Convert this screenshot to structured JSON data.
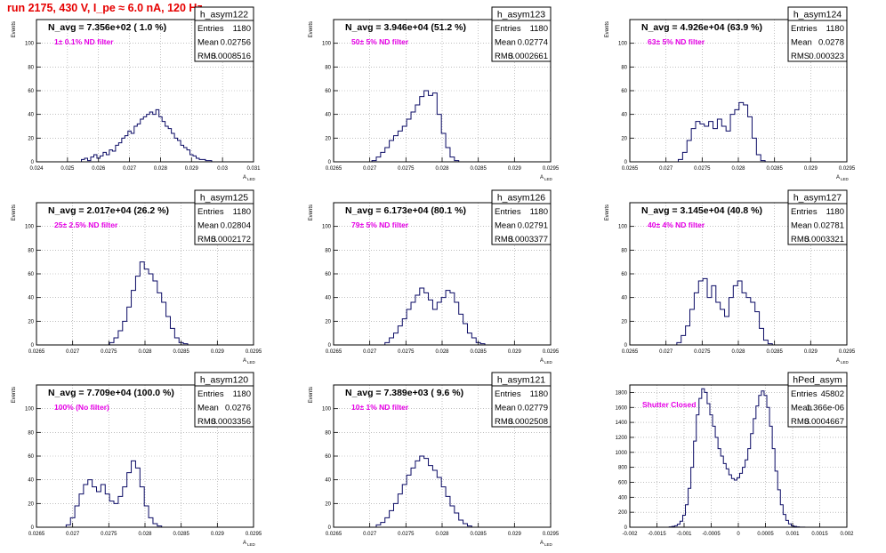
{
  "page": {
    "run_title": "run 2175,    430 V, I_pe ≈ 6.0 nA, 120 Hz"
  },
  "colors": {
    "histogram": "#0a0a64",
    "frame": "#000000",
    "grid": "#999999",
    "annotation": "#e600e6",
    "run_title": "#e60000"
  },
  "chart_data": [
    {
      "type": "histogram",
      "name": "h_asym122",
      "navg": "N_avg = 7.356e+02 ( 1.0 %)",
      "annotation": "1± 0.1% ND filter",
      "stats": {
        "entries": "1180",
        "mean": "0.02756",
        "rms": "0.0008516"
      },
      "xlim": [
        0.024,
        0.031
      ],
      "ylim": [
        0,
        120
      ],
      "xticks": [
        "0.024",
        "0.025",
        "0.026",
        "0.027",
        "0.028",
        "0.029",
        "0.03",
        "0.031"
      ],
      "yticks": [
        "0",
        "20",
        "40",
        "60",
        "80",
        "100"
      ],
      "ylabel": "Events",
      "xlabel": "A_LED",
      "bins_x": [
        0.0255,
        0.0256,
        0.0257,
        0.0258,
        0.0259,
        0.026,
        0.0261,
        0.0262,
        0.0263,
        0.0264,
        0.0265,
        0.0266,
        0.0267,
        0.0268,
        0.0269,
        0.027,
        0.0271,
        0.0272,
        0.0273,
        0.0274,
        0.0275,
        0.0276,
        0.0277,
        0.0278,
        0.0279,
        0.028,
        0.0281,
        0.0282,
        0.0283,
        0.0284,
        0.0285,
        0.0286,
        0.0287,
        0.0288,
        0.0289,
        0.029,
        0.0291,
        0.0292,
        0.0293,
        0.0294,
        0.0295,
        0.0296
      ],
      "values": [
        2,
        3,
        1,
        4,
        6,
        3,
        5,
        8,
        6,
        10,
        9,
        14,
        16,
        20,
        22,
        26,
        24,
        30,
        32,
        36,
        38,
        40,
        42,
        40,
        44,
        38,
        34,
        30,
        28,
        24,
        20,
        18,
        14,
        12,
        10,
        6,
        5,
        3,
        2,
        2,
        1,
        1
      ]
    },
    {
      "type": "histogram",
      "name": "h_asym123",
      "navg": "N_avg = 3.946e+04 (51.2 %)",
      "annotation": "50± 5% ND filter",
      "stats": {
        "entries": "1180",
        "mean": "0.02774",
        "rms": "0.0002661"
      },
      "xlim": [
        0.0265,
        0.0295
      ],
      "ylim": [
        0,
        120
      ],
      "xticks": [
        "0.0265",
        "0.027",
        "0.0275",
        "0.028",
        "0.0285",
        "0.029",
        "0.0295"
      ],
      "yticks": [
        "0",
        "20",
        "40",
        "60",
        "80",
        "100"
      ],
      "ylabel": "Events",
      "xlabel": "A_LED",
      "bins_x": [
        0.02706,
        0.02712,
        0.02718,
        0.02724,
        0.0273,
        0.02736,
        0.02742,
        0.02748,
        0.02754,
        0.0276,
        0.02766,
        0.02772,
        0.02778,
        0.02784,
        0.0279,
        0.02796,
        0.02802,
        0.02808,
        0.02814,
        0.0282
      ],
      "values": [
        1,
        4,
        8,
        12,
        18,
        22,
        26,
        30,
        36,
        42,
        48,
        55,
        60,
        56,
        58,
        40,
        24,
        12,
        4,
        1
      ]
    },
    {
      "type": "histogram",
      "name": "h_asym124",
      "navg": "N_avg = 4.926e+04 (63.9 %)",
      "annotation": "63± 5% ND filter",
      "stats": {
        "entries": "1180",
        "mean": "0.0278",
        "rms": "0.000323"
      },
      "xlim": [
        0.0265,
        0.0295
      ],
      "ylim": [
        0,
        120
      ],
      "xticks": [
        "0.0265",
        "0.027",
        "0.0275",
        "0.028",
        "0.0285",
        "0.029",
        "0.0295"
      ],
      "yticks": [
        "0",
        "20",
        "40",
        "60",
        "80",
        "100"
      ],
      "ylabel": "Events",
      "xlabel": "A_LED",
      "bins_x": [
        0.0272,
        0.02726,
        0.02732,
        0.02738,
        0.02744,
        0.0275,
        0.02756,
        0.02762,
        0.02768,
        0.02774,
        0.0278,
        0.02786,
        0.02792,
        0.02798,
        0.02804,
        0.0281,
        0.02816,
        0.02822,
        0.02828,
        0.02834
      ],
      "values": [
        2,
        8,
        18,
        28,
        34,
        32,
        30,
        34,
        28,
        36,
        30,
        26,
        40,
        44,
        50,
        48,
        38,
        20,
        6,
        1
      ]
    },
    {
      "type": "histogram",
      "name": "h_asym125",
      "navg": "N_avg = 2.017e+04 (26.2 %)",
      "annotation": "25± 2.5% ND filter",
      "stats": {
        "entries": "1180",
        "mean": "0.02804",
        "rms": "0.0002172"
      },
      "xlim": [
        0.0265,
        0.0295
      ],
      "ylim": [
        0,
        120
      ],
      "xticks": [
        "0.0265",
        "0.027",
        "0.0275",
        "0.028",
        "0.0285",
        "0.029",
        "0.0295"
      ],
      "yticks": [
        "0",
        "20",
        "40",
        "60",
        "80",
        "100"
      ],
      "ylabel": "Events",
      "xlabel": "A_LED",
      "bins_x": [
        0.02754,
        0.0276,
        0.02766,
        0.02772,
        0.02778,
        0.02784,
        0.0279,
        0.02796,
        0.02802,
        0.02808,
        0.02814,
        0.0282,
        0.02826,
        0.02832,
        0.02838,
        0.02844,
        0.0285,
        0.02856
      ],
      "values": [
        2,
        6,
        12,
        20,
        32,
        46,
        58,
        70,
        64,
        60,
        54,
        44,
        36,
        24,
        14,
        6,
        2,
        1
      ]
    },
    {
      "type": "histogram",
      "name": "h_asym126",
      "navg": "N_avg = 6.173e+04 (80.1 %)",
      "annotation": "79± 5% ND filter",
      "stats": {
        "entries": "1180",
        "mean": "0.02791",
        "rms": "0.0003377"
      },
      "xlim": [
        0.0265,
        0.0295
      ],
      "ylim": [
        0,
        120
      ],
      "xticks": [
        "0.0265",
        "0.027",
        "0.0275",
        "0.028",
        "0.0285",
        "0.029",
        "0.0295"
      ],
      "yticks": [
        "0",
        "20",
        "40",
        "60",
        "80",
        "100"
      ],
      "ylabel": "Events",
      "xlabel": "A_LED",
      "bins_x": [
        0.02724,
        0.0273,
        0.02736,
        0.02742,
        0.02748,
        0.02754,
        0.0276,
        0.02766,
        0.02772,
        0.02778,
        0.02784,
        0.0279,
        0.02796,
        0.02802,
        0.02808,
        0.02814,
        0.0282,
        0.02826,
        0.02832,
        0.02838,
        0.02844,
        0.0285,
        0.02856
      ],
      "values": [
        2,
        6,
        10,
        16,
        22,
        30,
        36,
        42,
        48,
        44,
        38,
        30,
        36,
        40,
        46,
        44,
        36,
        26,
        18,
        10,
        6,
        2,
        1
      ]
    },
    {
      "type": "histogram",
      "name": "h_asym127",
      "navg": "N_avg = 3.145e+04 (40.8 %)",
      "annotation": "40± 4% ND filter",
      "stats": {
        "entries": "1180",
        "mean": "0.02781",
        "rms": "0.0003321"
      },
      "xlim": [
        0.0265,
        0.0295
      ],
      "ylim": [
        0,
        120
      ],
      "xticks": [
        "0.0265",
        "0.027",
        "0.0275",
        "0.028",
        "0.0285",
        "0.029",
        "0.0295"
      ],
      "yticks": [
        "0",
        "20",
        "40",
        "60",
        "80",
        "100"
      ],
      "ylabel": "Events",
      "xlabel": "A_LED",
      "bins_x": [
        0.02718,
        0.02724,
        0.0273,
        0.02736,
        0.02742,
        0.02748,
        0.02754,
        0.0276,
        0.02766,
        0.02772,
        0.02778,
        0.02784,
        0.0279,
        0.02796,
        0.02802,
        0.02808,
        0.02814,
        0.0282,
        0.02826,
        0.02832,
        0.02838,
        0.02844
      ],
      "values": [
        2,
        8,
        16,
        30,
        44,
        54,
        56,
        40,
        50,
        36,
        30,
        24,
        40,
        50,
        54,
        44,
        40,
        36,
        28,
        14,
        4,
        1
      ]
    },
    {
      "type": "histogram",
      "name": "h_asym120",
      "navg": "N_avg = 7.709e+04 (100.0 %)",
      "annotation": "100% (No filter)",
      "stats": {
        "entries": "1180",
        "mean": "0.0276",
        "rms": "0.0003356"
      },
      "xlim": [
        0.0265,
        0.0295
      ],
      "ylim": [
        0,
        120
      ],
      "xticks": [
        "0.0265",
        "0.027",
        "0.0275",
        "0.028",
        "0.0285",
        "0.029",
        "0.0295"
      ],
      "yticks": [
        "0",
        "20",
        "40",
        "60",
        "80",
        "100"
      ],
      "ylabel": "Events",
      "xlabel": "A_LED",
      "bins_x": [
        0.02694,
        0.027,
        0.02706,
        0.02712,
        0.02718,
        0.02724,
        0.0273,
        0.02736,
        0.02742,
        0.02748,
        0.02754,
        0.0276,
        0.02766,
        0.02772,
        0.02778,
        0.02784,
        0.0279,
        0.02796,
        0.02802,
        0.02808,
        0.02814,
        0.0282
      ],
      "values": [
        2,
        8,
        18,
        28,
        36,
        40,
        34,
        30,
        36,
        28,
        22,
        20,
        26,
        34,
        46,
        56,
        50,
        34,
        18,
        8,
        3,
        1
      ]
    },
    {
      "type": "histogram",
      "name": "h_asym121",
      "navg": "N_avg = 7.389e+03 ( 9.6 %)",
      "annotation": "10± 1% ND filter",
      "stats": {
        "entries": "1180",
        "mean": "0.02779",
        "rms": "0.0002508"
      },
      "xlim": [
        0.0265,
        0.0295
      ],
      "ylim": [
        0,
        120
      ],
      "xticks": [
        "0.0265",
        "0.027",
        "0.0275",
        "0.028",
        "0.0285",
        "0.029",
        "0.0295"
      ],
      "yticks": [
        "0",
        "20",
        "40",
        "60",
        "80",
        "100"
      ],
      "ylabel": "Events",
      "xlabel": "A_LED",
      "bins_x": [
        0.02712,
        0.02718,
        0.02724,
        0.0273,
        0.02736,
        0.02742,
        0.02748,
        0.02754,
        0.0276,
        0.02766,
        0.02772,
        0.02778,
        0.02784,
        0.0279,
        0.02796,
        0.02802,
        0.02808,
        0.02814,
        0.0282,
        0.02826,
        0.02832,
        0.02838
      ],
      "values": [
        2,
        4,
        8,
        14,
        20,
        28,
        36,
        44,
        50,
        56,
        60,
        58,
        52,
        48,
        42,
        34,
        26,
        18,
        12,
        6,
        3,
        1
      ]
    },
    {
      "type": "histogram",
      "name": "hPed_asym",
      "navg": "",
      "annotation": "Shutter Closed",
      "stats": {
        "entries": "45802",
        "mean": "1.366e-06",
        "rms": "0.0004667"
      },
      "xlim": [
        -0.002,
        0.002
      ],
      "ylim": [
        0,
        1900
      ],
      "xticks": [
        "-0.002",
        "-0.0015",
        "-0.001",
        "-0.0005",
        "0",
        "0.0005",
        "0.001",
        "0.0015",
        "0.002"
      ],
      "yticks": [
        "0",
        "200",
        "400",
        "600",
        "800",
        "1000",
        "1200",
        "1400",
        "1600",
        "1800"
      ],
      "ylabel": "",
      "xlabel": "",
      "bins_x": [
        -0.00125,
        -0.0012,
        -0.00115,
        -0.0011,
        -0.00105,
        -0.001,
        -0.00095,
        -0.0009,
        -0.00085,
        -0.0008,
        -0.00075,
        -0.0007,
        -0.00065,
        -0.0006,
        -0.00055,
        -0.0005,
        -0.00045,
        -0.0004,
        -0.00035,
        -0.0003,
        -0.00025,
        -0.0002,
        -0.00015,
        -0.0001,
        -5e-05,
        0,
        5e-05,
        0.0001,
        0.00015,
        0.0002,
        0.00025,
        0.0003,
        0.00035,
        0.0004,
        0.00045,
        0.0005,
        0.00055,
        0.0006,
        0.00065,
        0.0007,
        0.00075,
        0.0008,
        0.00085,
        0.0009,
        0.00095,
        0.001,
        0.00105,
        0.0011,
        0.00115,
        0.0012,
        0.00125
      ],
      "values": [
        5,
        10,
        20,
        40,
        80,
        160,
        300,
        520,
        800,
        1150,
        1500,
        1720,
        1850,
        1800,
        1650,
        1500,
        1350,
        1200,
        1050,
        950,
        850,
        780,
        700,
        650,
        630,
        660,
        720,
        800,
        900,
        1050,
        1250,
        1450,
        1620,
        1760,
        1820,
        1760,
        1600,
        1350,
        1050,
        750,
        500,
        300,
        170,
        90,
        45,
        20,
        10,
        5,
        2,
        1,
        0
      ]
    }
  ]
}
